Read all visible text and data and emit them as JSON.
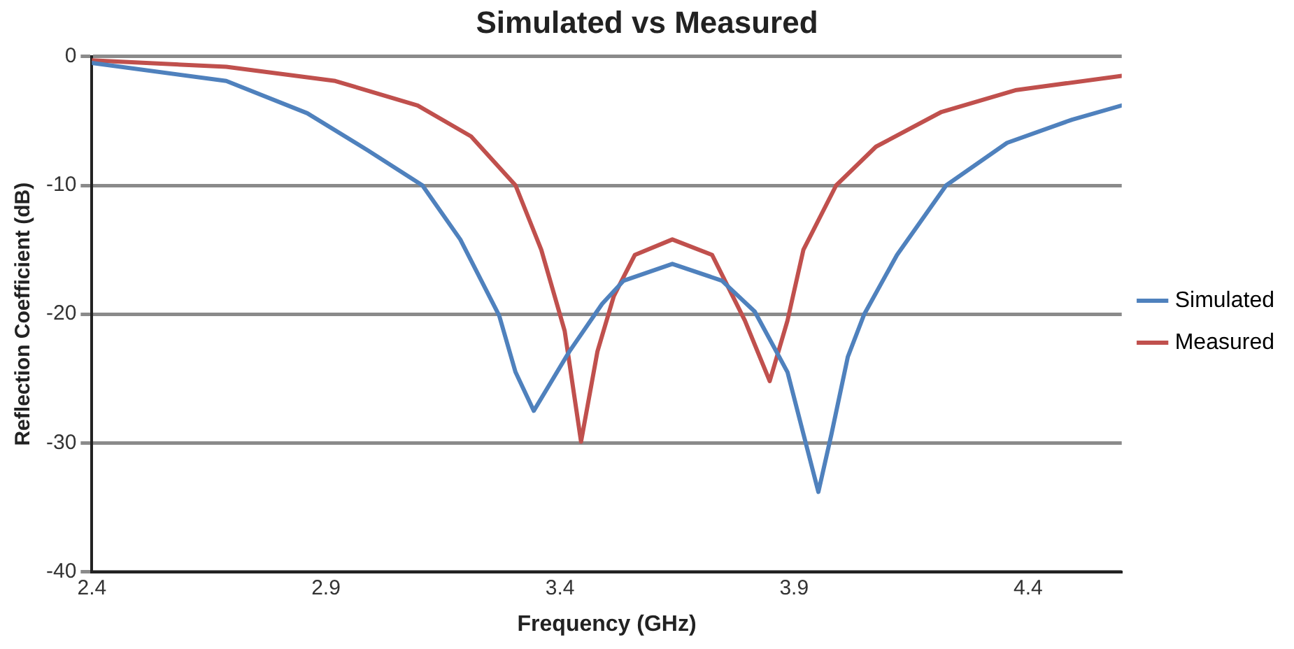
{
  "chart_data": {
    "type": "line",
    "title": "Simulated vs Measured",
    "xlabel": "Frequency (GHz)",
    "ylabel": "Reflection Coefficient (dB)",
    "xlim": [
      2.4,
      4.6
    ],
    "xticks": [
      2.4,
      2.9,
      3.4,
      3.9,
      4.4
    ],
    "ylim": [
      -40,
      0
    ],
    "yticks": [
      -40,
      -30,
      -20,
      -10,
      0
    ],
    "grid": "y",
    "legend": "right",
    "marker": "none",
    "line_style": "solid",
    "series": [
      {
        "name": "Simulated",
        "color": "#4f81bd",
        "x": [
          2.4,
          2.687,
          2.86,
          2.99,
          3.106,
          3.187,
          3.27,
          3.305,
          3.344,
          3.42,
          3.49,
          3.536,
          3.64,
          3.746,
          3.816,
          3.886,
          3.92,
          3.952,
          3.98,
          4.015,
          4.05,
          4.12,
          4.225,
          4.355,
          4.494,
          4.6
        ],
        "values": [
          -0.5,
          -1.9,
          -4.4,
          -7.3,
          -10,
          -14.2,
          -20.1,
          -24.5,
          -27.5,
          -22.9,
          -19.2,
          -17.4,
          -16.1,
          -17.4,
          -19.8,
          -24.5,
          -29.3,
          -33.8,
          -29.3,
          -23.3,
          -20,
          -15.4,
          -10,
          -6.7,
          -4.9,
          -3.8
        ]
      },
      {
        "name": "Measured",
        "color": "#c0504d",
        "x": [
          2.4,
          2.687,
          2.92,
          3.096,
          3.21,
          3.305,
          3.36,
          3.41,
          3.445,
          3.48,
          3.515,
          3.56,
          3.64,
          3.725,
          3.795,
          3.848,
          3.886,
          3.92,
          3.99,
          4.075,
          4.215,
          4.375,
          4.6
        ],
        "values": [
          -0.3,
          -0.8,
          -1.9,
          -3.8,
          -6.2,
          -10,
          -15,
          -21.3,
          -29.9,
          -22.9,
          -18.6,
          -15.4,
          -14.2,
          -15.4,
          -20.5,
          -25.2,
          -20.5,
          -15,
          -10,
          -7,
          -4.3,
          -2.6,
          -1.5
        ]
      }
    ]
  }
}
